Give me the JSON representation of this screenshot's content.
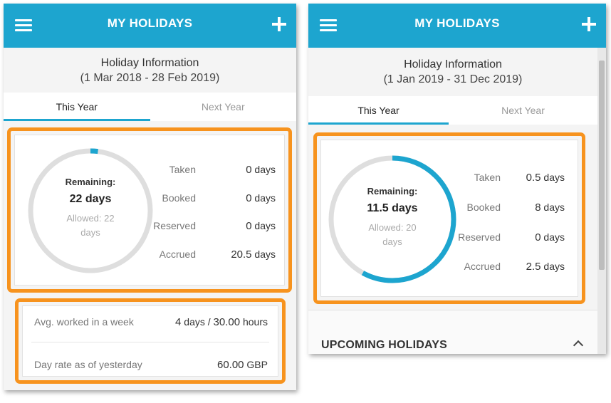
{
  "phones": [
    {
      "app_title": "MY HOLIDAYS",
      "info_title": "Holiday Information",
      "info_dates": "(1 Mar 2018 - 28 Feb 2019)",
      "tabs": [
        {
          "label": "This Year",
          "active": true
        },
        {
          "label": "Next Year",
          "active": false
        }
      ],
      "ring": {
        "label": "Remaining:",
        "value": "22 days",
        "allowed_line1": "Allowed: 22",
        "allowed_line2": "days",
        "progress_fraction": 0.02
      },
      "stats": [
        {
          "label": "Taken",
          "num": "0",
          "unit": "days"
        },
        {
          "label": "Booked",
          "num": "0",
          "unit": "days"
        },
        {
          "label": "Reserved",
          "num": "0",
          "unit": "days"
        },
        {
          "label": "Accrued",
          "num": "20.5",
          "unit": "days"
        }
      ],
      "extra_rows": [
        {
          "label": "Avg. worked in a week",
          "value_num": "4",
          "value_rest": " days / ",
          "value_num2": "30.00",
          "value_unit": " hours"
        },
        {
          "label": "Day rate as of yesterday",
          "value_num": "60.00",
          "value_unit": " GBP"
        }
      ]
    },
    {
      "app_title": "MY HOLIDAYS",
      "info_title": "Holiday Information",
      "info_dates": "(1 Jan 2019 - 31 Dec 2019)",
      "tabs": [
        {
          "label": "This Year",
          "active": true
        },
        {
          "label": "Next Year",
          "active": false
        }
      ],
      "ring": {
        "label": "Remaining:",
        "value": "11.5 days",
        "allowed_line1": "Allowed: 20",
        "allowed_line2": "days",
        "progress_fraction": 0.58
      },
      "stats": [
        {
          "label": "Taken",
          "num": "0.5",
          "unit": "days"
        },
        {
          "label": "Booked",
          "num": "8",
          "unit": "days"
        },
        {
          "label": "Reserved",
          "num": "0",
          "unit": "days"
        },
        {
          "label": "Accrued",
          "num": "2.5",
          "unit": "days"
        }
      ],
      "section_title": "UPCOMING HOLIDAYS"
    }
  ],
  "colors": {
    "accent": "#1da5cf",
    "highlight": "#f7931e",
    "ring_track": "#dedede"
  }
}
